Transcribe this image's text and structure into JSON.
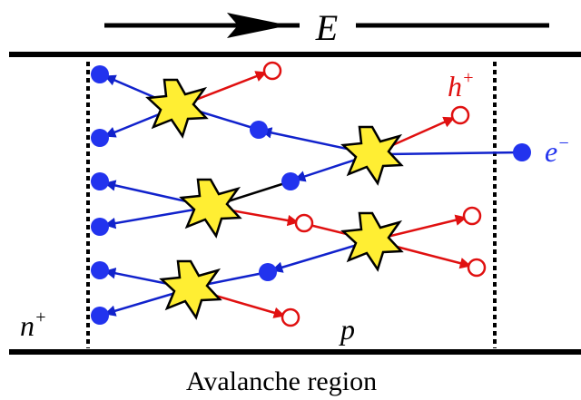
{
  "field": {
    "label": "E"
  },
  "labels": {
    "hole": {
      "symbol": "h",
      "sup": "+"
    },
    "electron": {
      "symbol": "e",
      "sup": "−"
    },
    "n_region": {
      "symbol": "n",
      "sup": "+"
    },
    "p_region": "p"
  },
  "caption": "Avalanche region"
}
